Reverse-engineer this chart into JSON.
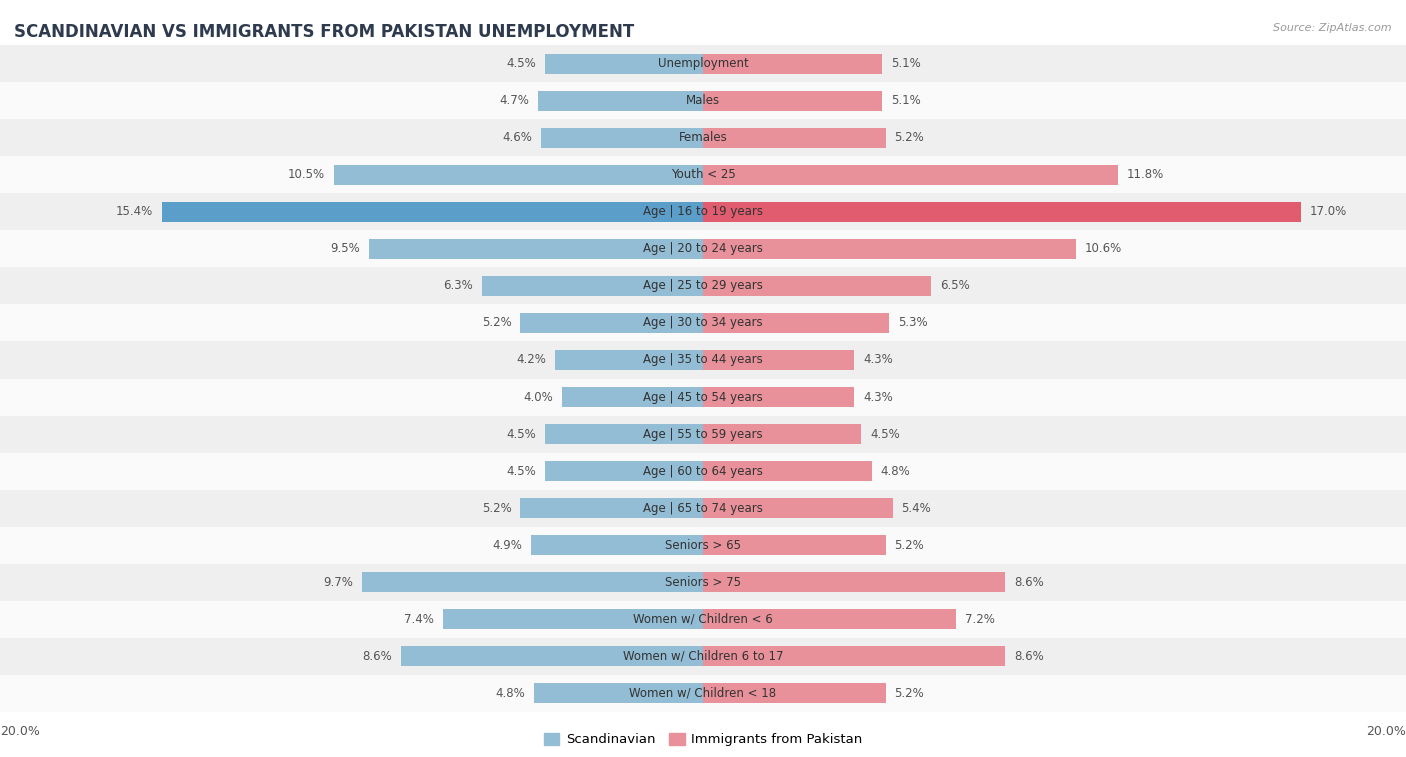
{
  "title": "SCANDINAVIAN VS IMMIGRANTS FROM PAKISTAN UNEMPLOYMENT",
  "source": "Source: ZipAtlas.com",
  "categories": [
    "Unemployment",
    "Males",
    "Females",
    "Youth < 25",
    "Age | 16 to 19 years",
    "Age | 20 to 24 years",
    "Age | 25 to 29 years",
    "Age | 30 to 34 years",
    "Age | 35 to 44 years",
    "Age | 45 to 54 years",
    "Age | 55 to 59 years",
    "Age | 60 to 64 years",
    "Age | 65 to 74 years",
    "Seniors > 65",
    "Seniors > 75",
    "Women w/ Children < 6",
    "Women w/ Children 6 to 17",
    "Women w/ Children < 18"
  ],
  "scandinavian": [
    4.5,
    4.7,
    4.6,
    10.5,
    15.4,
    9.5,
    6.3,
    5.2,
    4.2,
    4.0,
    4.5,
    4.5,
    5.2,
    4.9,
    9.7,
    7.4,
    8.6,
    4.8
  ],
  "pakistan": [
    5.1,
    5.1,
    5.2,
    11.8,
    17.0,
    10.6,
    6.5,
    5.3,
    4.3,
    4.3,
    4.5,
    4.8,
    5.4,
    5.2,
    8.6,
    7.2,
    8.6,
    5.2
  ],
  "x_max": 20.0,
  "color_scandinavian": "#92BDD4",
  "color_pakistan": "#E8919A",
  "color_highlight_scan": "#5B9EC9",
  "color_highlight_pak": "#E05C6E",
  "background_row_even": "#EFEFEF",
  "background_row_odd": "#FAFAFA",
  "title_color": "#2E3A4E",
  "value_color": "#555555",
  "axis_label_color": "#555555",
  "highlight_row": 4,
  "legend_scandinavian": "Scandinavian",
  "legend_pakistan": "Immigrants from Pakistan",
  "bar_height": 0.55,
  "label_fontsize": 8.5,
  "title_fontsize": 12
}
